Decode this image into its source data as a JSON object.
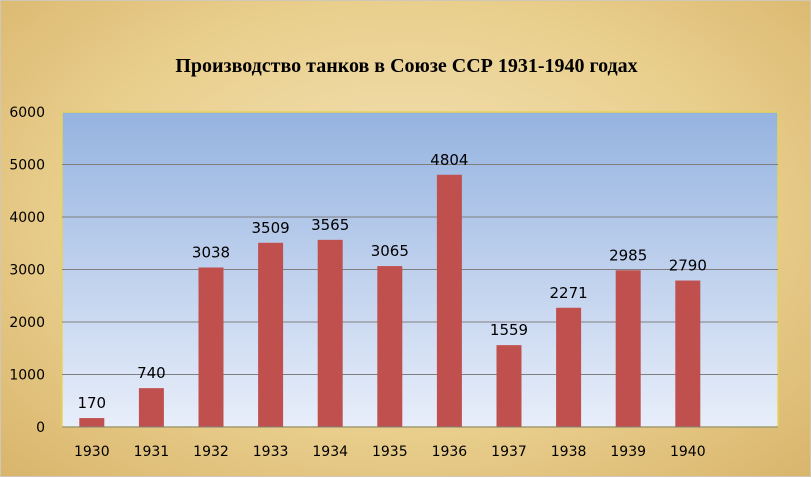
{
  "chart_data": {
    "type": "bar",
    "title": "Производство танков в Союзе ССР 1931-1940 годах",
    "xlabel": "",
    "ylabel": "",
    "categories": [
      "1930",
      "1931",
      "1932",
      "1933",
      "1934",
      "1935",
      "1936",
      "1937",
      "1938",
      "1939",
      "1940"
    ],
    "values": [
      170,
      740,
      3038,
      3509,
      3565,
      3065,
      4804,
      1559,
      2271,
      2985,
      2790
    ],
    "data_labels": [
      "170",
      "740",
      "3038",
      "3509",
      "3565",
      "3065",
      "4804",
      "1559",
      "2271",
      "2985",
      "2790"
    ],
    "ylim": [
      0,
      6000
    ],
    "yticks": [
      "0",
      "1000",
      "2000",
      "3000",
      "4000",
      "5000",
      "6000"
    ],
    "grid": true,
    "legend": "none",
    "colors": {
      "bar": "#c0504d",
      "plot_top": "#95b3e0",
      "plot_bottom": "#e8eefa",
      "grid": "#7f7f7f",
      "plot_border": "#e6d35a"
    }
  }
}
